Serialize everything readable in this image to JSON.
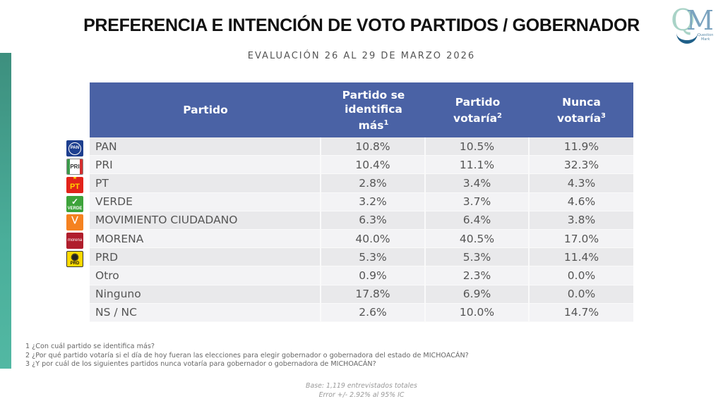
{
  "header": {
    "title": "PREFERENCIA E INTENCIÓN DE VOTO PARTIDOS / GOBERNADOR",
    "subtitle": "EVALUACIÓN 26 AL 29 DE MARZO 2026"
  },
  "logo": {
    "letters": [
      "Q",
      "M"
    ],
    "tagline_1": "Question",
    "tagline_2": "Mark"
  },
  "colors": {
    "header_bg": "#4a62a5",
    "side_bar": "#4aae9a",
    "row_odd": "#e9e9eb",
    "row_even": "#f3f3f5"
  },
  "table": {
    "columns": [
      {
        "label": "Partido",
        "sup": ""
      },
      {
        "label": "Partido se identifica más",
        "sup": "1"
      },
      {
        "label": "Partido votaría",
        "sup": "2"
      },
      {
        "label": "Nunca votaría",
        "sup": "3"
      }
    ],
    "rows": [
      {
        "party": "PAN",
        "icon": "pan-logo-icon",
        "identifica": "10.8%",
        "votaria": "10.5%",
        "nunca": "11.9%"
      },
      {
        "party": "PRI",
        "icon": "pri-logo-icon",
        "identifica": "10.4%",
        "votaria": "11.1%",
        "nunca": "32.3%"
      },
      {
        "party": "PT",
        "icon": "pt-logo-icon",
        "identifica": "2.8%",
        "votaria": "3.4%",
        "nunca": "4.3%"
      },
      {
        "party": "VERDE",
        "icon": "verde-logo-icon",
        "identifica": "3.2%",
        "votaria": "3.7%",
        "nunca": "4.6%"
      },
      {
        "party": "MOVIMIENTO CIUDADANO",
        "icon": "mc-logo-icon",
        "identifica": "6.3%",
        "votaria": "6.4%",
        "nunca": "3.8%"
      },
      {
        "party": "MORENA",
        "icon": "morena-logo-icon",
        "identifica": "40.0%",
        "votaria": "40.5%",
        "nunca": "17.0%"
      },
      {
        "party": "PRD",
        "icon": "prd-logo-icon",
        "identifica": "5.3%",
        "votaria": "5.3%",
        "nunca": "11.4%"
      },
      {
        "party": "Otro",
        "identifica": "0.9%",
        "votaria": "2.3%",
        "nunca": "0.0%"
      },
      {
        "party": "Ninguno",
        "identifica": "17.8%",
        "votaria": "6.9%",
        "nunca": "0.0%"
      },
      {
        "party": "NS / NC",
        "identifica": "2.6%",
        "votaria": "10.0%",
        "nunca": "14.7%"
      }
    ]
  },
  "icon_labels": {
    "pan": "PAN",
    "pri": "PRI",
    "pt": "PT",
    "verde": "VERDE",
    "morena": "morena",
    "prd": "PRD"
  },
  "footnotes": [
    "1 ¿Con cuál partido se identifica más?",
    "2 ¿Por qué partido votaría si el día de hoy fueran las elecciones para elegir gobernador o gobernadora del estado de MICHOACÁN?",
    "3 ¿Y por cuál de los siguientes partidos nunca votaría para gobernador o gobernadora de MICHOACÁN?"
  ],
  "base": {
    "line1": "Base: 1,119 entrevistados totales",
    "line2": "Error +/- 2.92% al 95% IC"
  }
}
